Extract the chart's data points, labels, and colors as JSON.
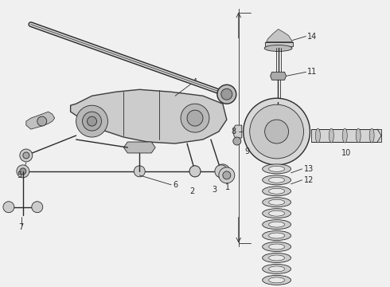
{
  "bg_color": "#f0f0f0",
  "line_color": "#2a2a2a",
  "label_color": "#1a1a1a",
  "fig_width": 4.9,
  "fig_height": 3.6,
  "dpi": 100
}
